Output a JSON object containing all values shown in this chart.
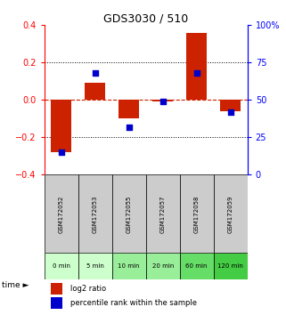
{
  "title": "GDS3030 / 510",
  "samples": [
    "GSM172052",
    "GSM172053",
    "GSM172055",
    "GSM172057",
    "GSM172058",
    "GSM172059"
  ],
  "time_labels": [
    "0 min",
    "5 min",
    "10 min",
    "20 min",
    "60 min",
    "120 min"
  ],
  "log2_ratio": [
    -0.28,
    0.09,
    -0.1,
    -0.01,
    0.36,
    -0.06
  ],
  "percentile_rank": [
    15,
    68,
    32,
    49,
    68,
    42
  ],
  "bar_color": "#cc2200",
  "dot_color": "#0000cc",
  "ylim_left": [
    -0.4,
    0.4
  ],
  "ylim_right": [
    0,
    100
  ],
  "yticks_left": [
    -0.4,
    -0.2,
    0.0,
    0.2,
    0.4
  ],
  "yticks_right": [
    0,
    25,
    50,
    75,
    100
  ],
  "ytick_labels_right": [
    "0",
    "25",
    "50",
    "75",
    "100%"
  ],
  "hline_dotted": [
    0.2,
    -0.2
  ],
  "background_color": "#ffffff",
  "sample_box_color": "#cccccc",
  "time_box_colors": [
    "#ccffcc",
    "#ccffcc",
    "#99ee99",
    "#99ee99",
    "#66dd66",
    "#44cc44"
  ],
  "legend_log2": "log2 ratio",
  "legend_pct": "percentile rank within the sample",
  "time_label": "time ►"
}
